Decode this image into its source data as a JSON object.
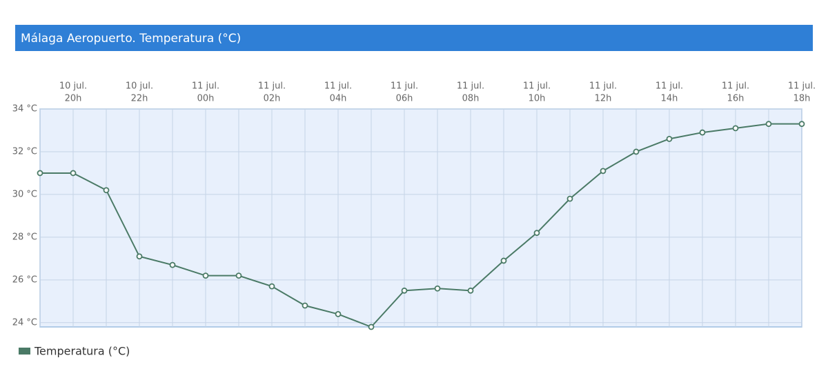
{
  "chart_data": {
    "type": "line",
    "title": "Málaga Aeropuerto. Temperatura (°C)",
    "categories": [
      null,
      [
        "10 jul.",
        "20h"
      ],
      null,
      [
        "10 jul.",
        "22h"
      ],
      null,
      [
        "11 jul.",
        "00h"
      ],
      null,
      [
        "11 jul.",
        "02h"
      ],
      null,
      [
        "11 jul.",
        "04h"
      ],
      null,
      [
        "11 jul.",
        "06h"
      ],
      null,
      [
        "11 jul.",
        "08h"
      ],
      null,
      [
        "11 jul.",
        "10h"
      ],
      null,
      [
        "11 jul.",
        "12h"
      ],
      null,
      [
        "11 jul.",
        "14h"
      ],
      null,
      [
        "11 jul.",
        "16h"
      ],
      null,
      [
        "11 jul.",
        "18h"
      ]
    ],
    "series": [
      {
        "name": "Temperatura (°C)",
        "color": "#4a7a66",
        "values": [
          31.0,
          31.0,
          30.2,
          27.1,
          26.7,
          26.2,
          26.2,
          25.7,
          24.8,
          24.4,
          23.8,
          25.5,
          25.6,
          25.5,
          26.9,
          28.2,
          29.8,
          31.1,
          32.0,
          32.6,
          32.9,
          33.1,
          33.3,
          33.3
        ]
      }
    ],
    "ylim": [
      23.8,
      34
    ],
    "yticks": [
      {
        "value": 24,
        "label": "24 °C"
      },
      {
        "value": 26,
        "label": "26 °C"
      },
      {
        "value": 28,
        "label": "28 °C"
      },
      {
        "value": 30,
        "label": "30 °C"
      },
      {
        "value": 32,
        "label": "32 °C"
      },
      {
        "value": 34,
        "label": "34 °C"
      }
    ],
    "grid": true
  }
}
